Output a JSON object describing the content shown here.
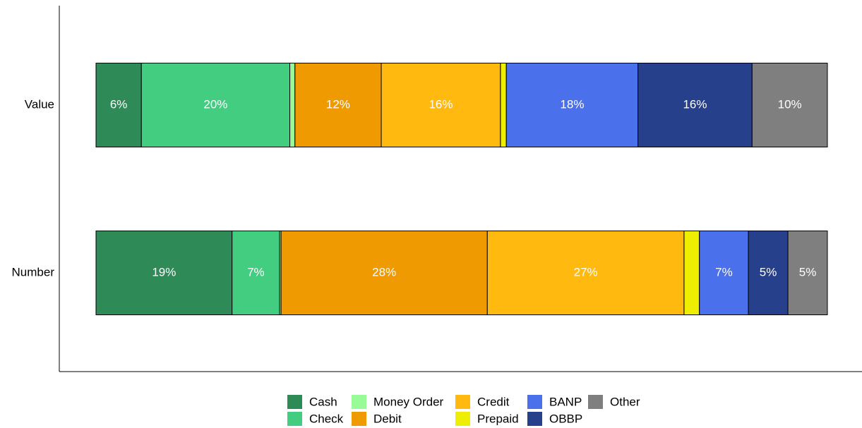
{
  "chart_data": {
    "type": "stacked-bar-horizontal",
    "categories": [
      "Value",
      "Number"
    ],
    "xlim": [
      0,
      100
    ],
    "series": [
      {
        "name": "Cash",
        "color": "#2e8b57",
        "values": [
          6.2,
          18.6
        ],
        "value_labels": [
          "6%",
          "19%"
        ]
      },
      {
        "name": "Check",
        "color": "#43cd80",
        "values": [
          20.3,
          6.5
        ],
        "value_labels": [
          "20%",
          "7%"
        ]
      },
      {
        "name": "Money Order",
        "color": "#98fb98",
        "values": [
          0.7,
          0.2
        ],
        "value_labels": [
          null,
          null
        ]
      },
      {
        "name": "Debit",
        "color": "#ee9a00",
        "values": [
          11.8,
          28.2
        ],
        "value_labels": [
          "12%",
          "28%"
        ]
      },
      {
        "name": "Credit",
        "color": "#ffb90f",
        "values": [
          16.3,
          26.9
        ],
        "value_labels": [
          "16%",
          "27%"
        ]
      },
      {
        "name": "Prepaid",
        "color": "#eeee00",
        "values": [
          0.8,
          2.1
        ],
        "value_labels": [
          null,
          null
        ]
      },
      {
        "name": "BANP",
        "color": "#4a70ec",
        "values": [
          18.0,
          6.7
        ],
        "value_labels": [
          "18%",
          "7%"
        ]
      },
      {
        "name": "OBBP",
        "color": "#27408b",
        "values": [
          15.6,
          5.4
        ],
        "value_labels": [
          "16%",
          "5%"
        ]
      },
      {
        "name": "Other",
        "color": "#7f7f7f",
        "values": [
          10.3,
          5.4
        ],
        "value_labels": [
          "10%",
          "5%"
        ]
      }
    ]
  }
}
